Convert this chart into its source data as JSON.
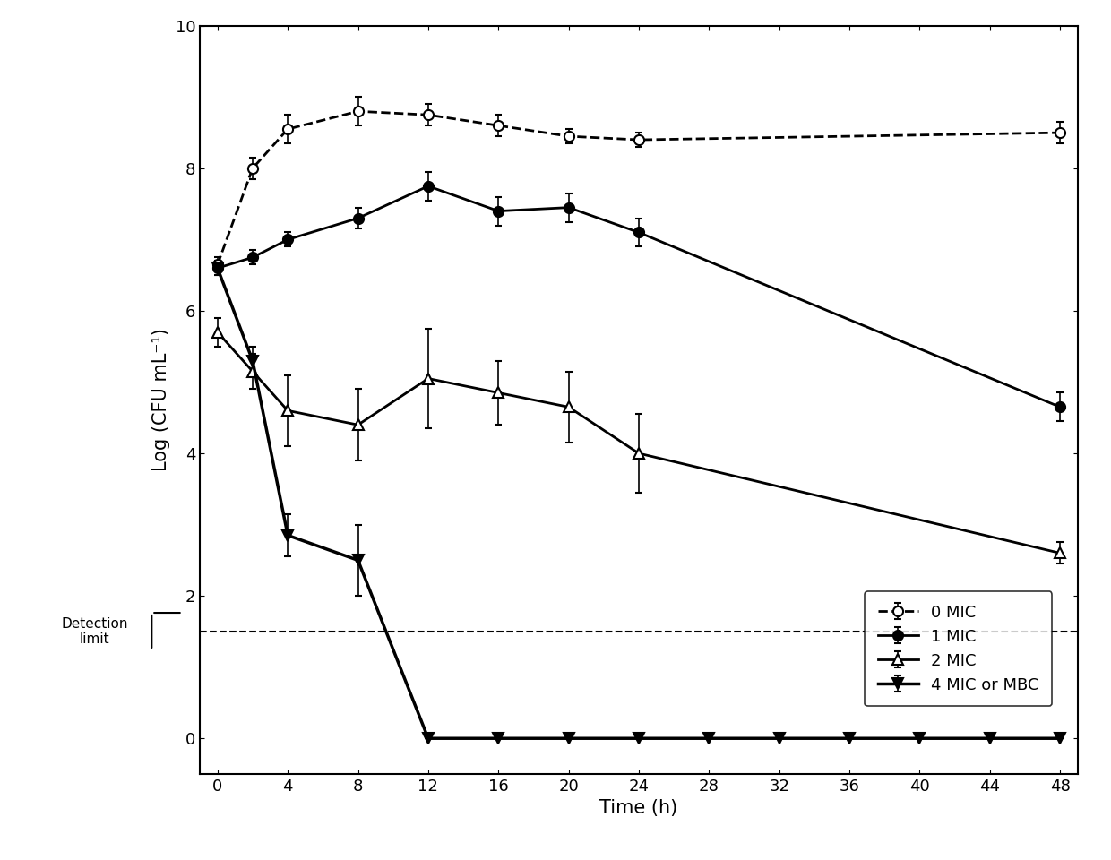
{
  "title": "",
  "xlabel": "Time (h)",
  "ylabel": "Log (CFU mL⁻¹)",
  "xlim": [
    -1,
    49
  ],
  "ylim": [
    -0.5,
    10
  ],
  "yticks": [
    0,
    2,
    4,
    6,
    8,
    10
  ],
  "xticks": [
    0,
    4,
    8,
    12,
    16,
    20,
    24,
    28,
    32,
    36,
    40,
    44,
    48
  ],
  "detection_limit": 1.5,
  "series": {
    "0MIC": {
      "x": [
        0,
        2,
        4,
        8,
        12,
        16,
        20,
        24,
        48
      ],
      "y": [
        6.65,
        8.0,
        8.55,
        8.8,
        8.75,
        8.6,
        8.45,
        8.4,
        8.5
      ],
      "yerr": [
        0.1,
        0.15,
        0.2,
        0.2,
        0.15,
        0.15,
        0.1,
        0.1,
        0.15
      ],
      "linestyle": "--",
      "marker": "o",
      "markerfacecolor": "white",
      "color": "black",
      "linewidth": 2.0,
      "markersize": 8,
      "label": "0 MIC"
    },
    "1MIC": {
      "x": [
        0,
        2,
        4,
        8,
        12,
        16,
        20,
        24,
        48
      ],
      "y": [
        6.6,
        6.75,
        7.0,
        7.3,
        7.75,
        7.4,
        7.45,
        7.1,
        4.65
      ],
      "yerr": [
        0.1,
        0.1,
        0.1,
        0.15,
        0.2,
        0.2,
        0.2,
        0.2,
        0.2
      ],
      "linestyle": "-",
      "marker": "o",
      "markerfacecolor": "black",
      "color": "black",
      "linewidth": 2.0,
      "markersize": 8,
      "label": "1 MIC"
    },
    "2MIC": {
      "x": [
        0,
        2,
        4,
        8,
        12,
        16,
        20,
        24,
        48
      ],
      "y": [
        5.7,
        5.15,
        4.6,
        4.4,
        5.05,
        4.85,
        4.65,
        4.0,
        2.6
      ],
      "yerr": [
        0.2,
        0.25,
        0.5,
        0.5,
        0.7,
        0.45,
        0.5,
        0.55,
        0.15
      ],
      "linestyle": "-",
      "marker": "^",
      "markerfacecolor": "white",
      "color": "black",
      "linewidth": 2.0,
      "markersize": 8,
      "label": "2 MIC"
    },
    "4MIC": {
      "x": [
        0,
        2,
        4,
        8,
        12,
        16,
        20,
        24,
        28,
        32,
        36,
        40,
        44,
        48
      ],
      "y": [
        6.6,
        5.3,
        2.85,
        2.5,
        0.0,
        0.0,
        0.0,
        0.0,
        0.0,
        0.0,
        0.0,
        0.0,
        0.0,
        0.0
      ],
      "yerr": [
        0.1,
        0.2,
        0.3,
        0.5,
        0.0,
        0.0,
        0.0,
        0.0,
        0.0,
        0.0,
        0.0,
        0.0,
        0.0,
        0.0
      ],
      "linestyle": "-",
      "marker": "v",
      "markerfacecolor": "black",
      "color": "black",
      "linewidth": 2.5,
      "markersize": 8,
      "label": "4 MIC or MBC"
    }
  },
  "detection_limit_text": "Detection\nlimit",
  "fontsize": 15,
  "tick_labelsize": 13,
  "legend_fontsize": 13
}
